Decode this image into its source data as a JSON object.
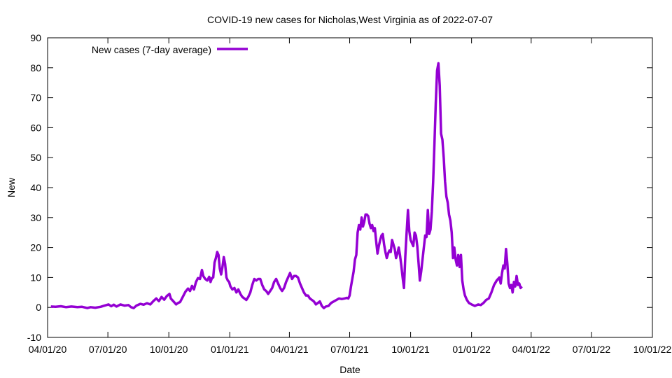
{
  "chart_data": {
    "type": "line",
    "title": "COVID-19 new cases for Nicholas,West Virginia as of 2022-07-07",
    "xlabel": "Date",
    "ylabel": "New",
    "ylim": [
      -10,
      90
    ],
    "yticks": [
      -10,
      0,
      10,
      20,
      30,
      40,
      50,
      60,
      70,
      80,
      90
    ],
    "xlim_days": [
      0,
      913
    ],
    "xticks": [
      {
        "day": 0,
        "label": "04/01/20"
      },
      {
        "day": 91,
        "label": "07/01/20"
      },
      {
        "day": 183,
        "label": "10/01/20"
      },
      {
        "day": 275,
        "label": "01/01/21"
      },
      {
        "day": 365,
        "label": "04/01/21"
      },
      {
        "day": 456,
        "label": "07/01/21"
      },
      {
        "day": 548,
        "label": "10/01/21"
      },
      {
        "day": 640,
        "label": "01/01/22"
      },
      {
        "day": 730,
        "label": "04/01/22"
      },
      {
        "day": 821,
        "label": "07/01/22"
      },
      {
        "day": 913,
        "label": "10/01/22"
      }
    ],
    "grid": false,
    "legend_position": "top-left",
    "series": [
      {
        "name": "New cases (7-day average)",
        "color": "#9400d3",
        "points": [
          [
            5,
            0.3
          ],
          [
            12,
            0.2
          ],
          [
            20,
            0.4
          ],
          [
            28,
            0.1
          ],
          [
            36,
            0.3
          ],
          [
            45,
            0.1
          ],
          [
            52,
            0.2
          ],
          [
            60,
            -0.2
          ],
          [
            65,
            0.1
          ],
          [
            72,
            -0.1
          ],
          [
            80,
            0.2
          ],
          [
            86,
            0.6
          ],
          [
            92,
            1.0
          ],
          [
            96,
            0.4
          ],
          [
            100,
            0.9
          ],
          [
            104,
            0.3
          ],
          [
            110,
            1.0
          ],
          [
            116,
            0.6
          ],
          [
            122,
            0.8
          ],
          [
            126,
            0.1
          ],
          [
            130,
            -0.2
          ],
          [
            134,
            0.6
          ],
          [
            140,
            1.2
          ],
          [
            145,
            0.9
          ],
          [
            150,
            1.4
          ],
          [
            155,
            1.0
          ],
          [
            160,
            2.2
          ],
          [
            164,
            3.0
          ],
          [
            168,
            2.1
          ],
          [
            172,
            3.5
          ],
          [
            176,
            2.6
          ],
          [
            180,
            3.8
          ],
          [
            184,
            4.5
          ],
          [
            186,
            3.0
          ],
          [
            190,
            2.0
          ],
          [
            194,
            1.0
          ],
          [
            197,
            1.5
          ],
          [
            200,
            1.8
          ],
          [
            204,
            3.5
          ],
          [
            208,
            5.2
          ],
          [
            212,
            6.3
          ],
          [
            215,
            5.5
          ],
          [
            218,
            7.2
          ],
          [
            221,
            6.0
          ],
          [
            224,
            8.5
          ],
          [
            227,
            9.8
          ],
          [
            230,
            9.5
          ],
          [
            233,
            12.5
          ],
          [
            235,
            10.5
          ],
          [
            238,
            9.5
          ],
          [
            241,
            9.0
          ],
          [
            244,
            10.2
          ],
          [
            246,
            8.5
          ],
          [
            248,
            9.8
          ],
          [
            250,
            10.0
          ],
          [
            252,
            15.0
          ],
          [
            254,
            16.5
          ],
          [
            256,
            18.5
          ],
          [
            258,
            17.5
          ],
          [
            260,
            13.0
          ],
          [
            262,
            11.0
          ],
          [
            264,
            13.5
          ],
          [
            266,
            16.8
          ],
          [
            268,
            14.5
          ],
          [
            270,
            10.0
          ],
          [
            272,
            9.0
          ],
          [
            274,
            8.5
          ],
          [
            276,
            7.0
          ],
          [
            279,
            6.0
          ],
          [
            282,
            6.5
          ],
          [
            285,
            5.0
          ],
          [
            288,
            6.0
          ],
          [
            291,
            4.5
          ],
          [
            294,
            3.5
          ],
          [
            297,
            3.0
          ],
          [
            300,
            2.5
          ],
          [
            303,
            3.5
          ],
          [
            306,
            5.0
          ],
          [
            309,
            7.5
          ],
          [
            312,
            9.5
          ],
          [
            315,
            9.0
          ],
          [
            318,
            9.5
          ],
          [
            321,
            9.5
          ],
          [
            324,
            7.5
          ],
          [
            327,
            6.0
          ],
          [
            330,
            5.5
          ],
          [
            333,
            4.5
          ],
          [
            336,
            5.5
          ],
          [
            339,
            6.5
          ],
          [
            342,
            8.5
          ],
          [
            345,
            9.5
          ],
          [
            348,
            8.0
          ],
          [
            351,
            6.5
          ],
          [
            354,
            5.5
          ],
          [
            357,
            6.5
          ],
          [
            360,
            8.5
          ],
          [
            363,
            10.0
          ],
          [
            366,
            11.5
          ],
          [
            369,
            9.5
          ],
          [
            372,
            10.5
          ],
          [
            375,
            10.5
          ],
          [
            378,
            10.0
          ],
          [
            381,
            8.0
          ],
          [
            384,
            6.5
          ],
          [
            387,
            5.0
          ],
          [
            390,
            4.0
          ],
          [
            393,
            4.0
          ],
          [
            396,
            3.0
          ],
          [
            399,
            2.5
          ],
          [
            402,
            2.0
          ],
          [
            405,
            1.0
          ],
          [
            408,
            1.5
          ],
          [
            411,
            2.0
          ],
          [
            414,
            0.5
          ],
          [
            417,
            -0.2
          ],
          [
            420,
            0.3
          ],
          [
            424,
            0.5
          ],
          [
            428,
            1.5
          ],
          [
            432,
            2.0
          ],
          [
            436,
            2.5
          ],
          [
            440,
            3.0
          ],
          [
            444,
            2.8
          ],
          [
            448,
            3.0
          ],
          [
            452,
            3.2
          ],
          [
            454,
            3.0
          ],
          [
            456,
            4.0
          ],
          [
            458,
            7.0
          ],
          [
            460,
            9.5
          ],
          [
            462,
            12.0
          ],
          [
            464,
            16.0
          ],
          [
            466,
            17.5
          ],
          [
            468,
            25.0
          ],
          [
            470,
            27.5
          ],
          [
            472,
            26.0
          ],
          [
            474,
            30.0
          ],
          [
            476,
            27.0
          ],
          [
            478,
            28.5
          ],
          [
            480,
            31.0
          ],
          [
            482,
            31.0
          ],
          [
            484,
            30.5
          ],
          [
            486,
            28.0
          ],
          [
            488,
            26.5
          ],
          [
            490,
            27.5
          ],
          [
            492,
            25.5
          ],
          [
            494,
            26.5
          ],
          [
            496,
            22.0
          ],
          [
            498,
            18.0
          ],
          [
            500,
            20.5
          ],
          [
            502,
            22.5
          ],
          [
            504,
            24.0
          ],
          [
            506,
            24.5
          ],
          [
            508,
            21.0
          ],
          [
            510,
            18.5
          ],
          [
            512,
            16.5
          ],
          [
            514,
            18.0
          ],
          [
            516,
            19.0
          ],
          [
            518,
            18.5
          ],
          [
            520,
            22.5
          ],
          [
            522,
            21.0
          ],
          [
            524,
            19.5
          ],
          [
            526,
            16.5
          ],
          [
            528,
            18.0
          ],
          [
            530,
            20.0
          ],
          [
            532,
            17.5
          ],
          [
            534,
            14.0
          ],
          [
            536,
            10.0
          ],
          [
            538,
            6.5
          ],
          [
            540,
            17.0
          ],
          [
            542,
            25.0
          ],
          [
            544,
            32.5
          ],
          [
            546,
            25.5
          ],
          [
            548,
            22.5
          ],
          [
            550,
            21.5
          ],
          [
            552,
            20.5
          ],
          [
            554,
            25.0
          ],
          [
            556,
            24.0
          ],
          [
            558,
            20.5
          ],
          [
            560,
            15.0
          ],
          [
            562,
            9.0
          ],
          [
            564,
            12.0
          ],
          [
            566,
            16.0
          ],
          [
            568,
            20.0
          ],
          [
            570,
            24.0
          ],
          [
            572,
            23.5
          ],
          [
            574,
            32.5
          ],
          [
            576,
            24.5
          ],
          [
            578,
            26.0
          ],
          [
            580,
            32.0
          ],
          [
            582,
            42.0
          ],
          [
            584,
            55.0
          ],
          [
            586,
            68.0
          ],
          [
            588,
            79.0
          ],
          [
            590,
            81.5
          ],
          [
            592,
            74.0
          ],
          [
            594,
            58.0
          ],
          [
            596,
            56.0
          ],
          [
            598,
            50.0
          ],
          [
            600,
            42.0
          ],
          [
            602,
            37.0
          ],
          [
            604,
            35.0
          ],
          [
            606,
            31.0
          ],
          [
            608,
            29.0
          ],
          [
            610,
            25.0
          ],
          [
            612,
            16.5
          ],
          [
            614,
            20.0
          ],
          [
            616,
            16.0
          ],
          [
            618,
            14.0
          ],
          [
            620,
            17.5
          ],
          [
            622,
            13.5
          ],
          [
            624,
            17.5
          ],
          [
            626,
            9.0
          ],
          [
            628,
            6.0
          ],
          [
            630,
            4.0
          ],
          [
            633,
            2.5
          ],
          [
            636,
            1.5
          ],
          [
            640,
            1.0
          ],
          [
            645,
            0.5
          ],
          [
            650,
            1.0
          ],
          [
            654,
            0.8
          ],
          [
            658,
            1.5
          ],
          [
            662,
            2.5
          ],
          [
            666,
            3.0
          ],
          [
            670,
            5.0
          ],
          [
            674,
            7.5
          ],
          [
            678,
            9.0
          ],
          [
            682,
            10.0
          ],
          [
            684,
            8.0
          ],
          [
            686,
            11.5
          ],
          [
            688,
            14.0
          ],
          [
            690,
            13.0
          ],
          [
            692,
            19.5
          ],
          [
            694,
            14.5
          ],
          [
            696,
            8.0
          ],
          [
            698,
            6.5
          ],
          [
            700,
            7.5
          ],
          [
            702,
            5.0
          ],
          [
            704,
            8.5
          ],
          [
            706,
            7.0
          ],
          [
            708,
            10.5
          ],
          [
            710,
            7.5
          ],
          [
            712,
            8.0
          ],
          [
            714,
            6.5
          ],
          [
            716,
            7.0
          ]
        ]
      }
    ]
  }
}
